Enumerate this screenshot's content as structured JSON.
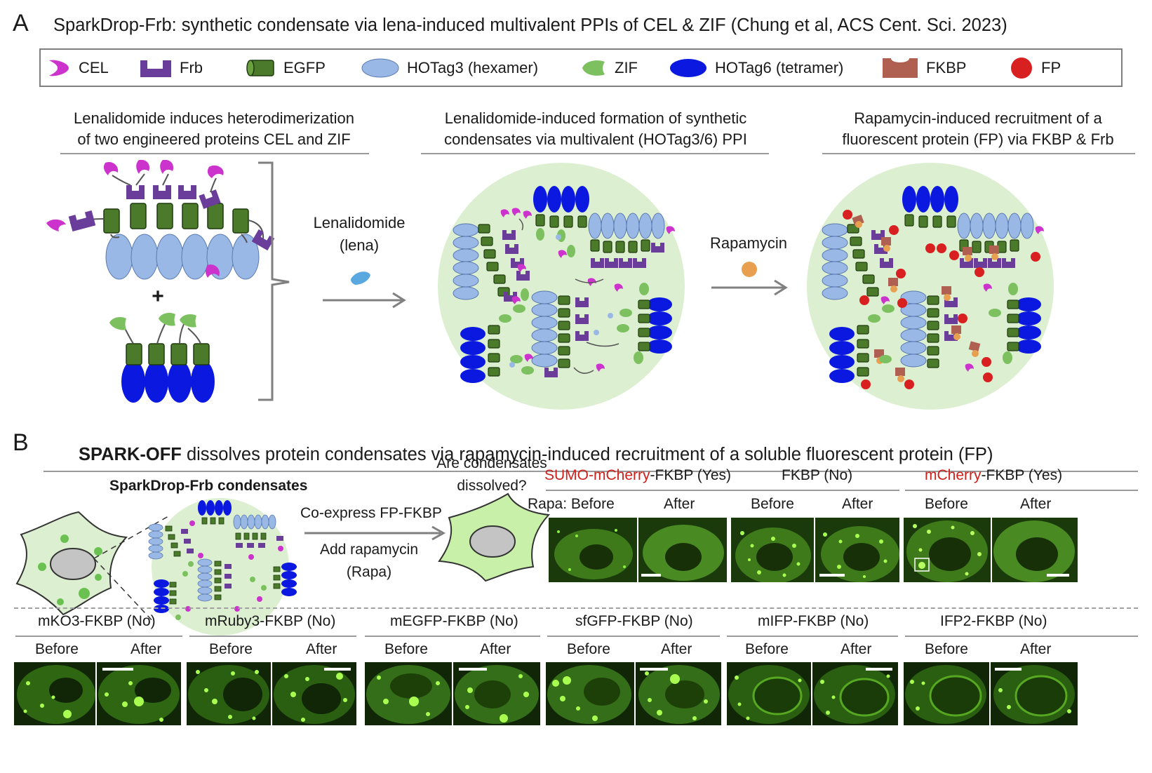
{
  "panel_a": {
    "letter": "A",
    "title": "SparkDrop-Frb: synthetic condensate via lena-induced multivalent PPIs of CEL & ZIF (Chung et al, ACS Cent. Sci. 2023)",
    "legend": [
      {
        "icon": "cel-icon",
        "label": "CEL",
        "color": "#cc33cc"
      },
      {
        "icon": "frb-icon",
        "label": "Frb",
        "color": "#6a3d9a"
      },
      {
        "icon": "egfp-icon",
        "label": "EGFP",
        "color": "#4a7a2a"
      },
      {
        "icon": "hotag3-icon",
        "label": "HOTag3 (hexamer)",
        "color": "#9ab8e6"
      },
      {
        "icon": "zif-icon",
        "label": "ZIF",
        "color": "#7cc060"
      },
      {
        "icon": "hotag6-icon",
        "label": "HOTag6 (tetramer)",
        "color": "#0a18e0"
      },
      {
        "icon": "fkbp-icon",
        "label": "FKBP",
        "color": "#b06050"
      },
      {
        "icon": "fp-icon",
        "label": "FP",
        "color": "#d82020"
      }
    ],
    "heading_1": [
      "Lenalidomide induces heterodimerization",
      "of two engineered proteins CEL and ZIF"
    ],
    "heading_2": [
      "Lenalidomide-induced formation of synthetic",
      "condensates via multivalent (HOTag3/6) PPI"
    ],
    "heading_3": [
      "Rapamycin-induced recruitment of a",
      "fluorescent protein (FP) via FKBP & Frb"
    ],
    "plus": "+",
    "arrow_1": [
      "Lenalidomide",
      "(lena)"
    ],
    "arrow_2": "Rapamycin"
  },
  "panel_b": {
    "letter": "B",
    "title_bold": "SPARK-OFF",
    "title_rest": " dissolves protein condensates via rapamycin-induced recruitment of a soluble fluorescent protein (FP)",
    "condensate_label": "SparkDrop-Frb condensates",
    "question": [
      "Are condensates",
      "dissolved?"
    ],
    "step_1": "Co-express FP-FKBP",
    "step_2": [
      "Add rapamycin",
      "(Rapa)"
    ],
    "top_groups": [
      {
        "red": "SUMO-mCherry",
        "rest": "-FKBP (Yes)"
      },
      {
        "red": "",
        "rest": "FKBP (No)"
      },
      {
        "red": "mCherry",
        "rest": "-FKBP (Yes)"
      }
    ],
    "rapa_label": "Rapa: Before",
    "before": "Before",
    "after": "After",
    "bottom_groups": [
      "mKO3-FKBP (No)",
      "mRuby3-FKBP (No)",
      "mEGFP-FKBP (No)",
      "sfGFP-FKBP (No)",
      "mIFP-FKBP (No)",
      "IFP2-FKBP (No)"
    ]
  },
  "colors": {
    "cel": "#cc33cc",
    "frb": "#6a3d9a",
    "egfp": "#4a7a2a",
    "hotag3": "#9ab8e6",
    "zif": "#7cc060",
    "hotag6": "#0a18e0",
    "fkbp": "#b06050",
    "fp": "#d82020",
    "condensate_bg": "#dcefd0",
    "lena": "#5aa8e0",
    "rapamycin": "#e8a050"
  }
}
